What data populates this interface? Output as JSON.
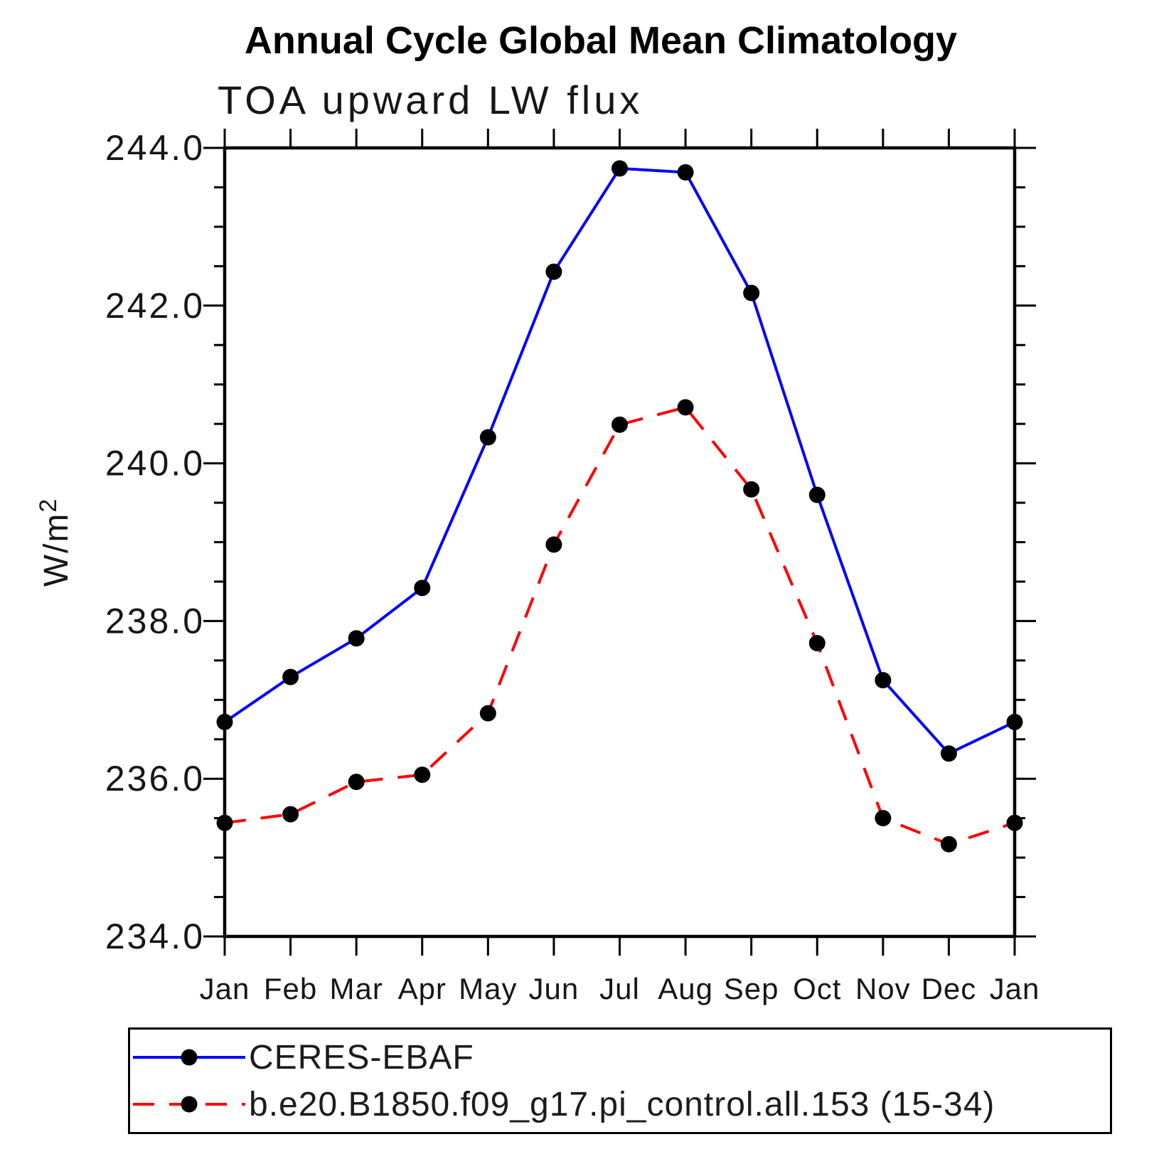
{
  "title": "Annual Cycle Global Mean Climatology",
  "subtitle": "TOA upward LW flux",
  "colors": {
    "axis": "#000000",
    "marker": "#000000",
    "ceres_line": "#0000ff",
    "model_line": "#ff0000"
  },
  "y_axis": {
    "label_main": "W/m",
    "label_sup": "2",
    "min": 234.0,
    "max": 244.0,
    "major_step": 2.0,
    "minor_step": 0.5,
    "tick_labels": [
      "234.0",
      "236.0",
      "238.0",
      "240.0",
      "242.0",
      "244.0"
    ]
  },
  "x_axis": {
    "categories": [
      "Jan",
      "Feb",
      "Mar",
      "Apr",
      "May",
      "Jun",
      "Jul",
      "Aug",
      "Sep",
      "Oct",
      "Nov",
      "Dec",
      "Jan"
    ]
  },
  "legend": {
    "items": [
      {
        "label": "CERES-EBAF",
        "color": "#0000ff",
        "style": "solid"
      },
      {
        "label": "b.e20.B1850.f09_g17.pi_control.all.153 (15-34)",
        "color": "#ff0000",
        "style": "dashed"
      }
    ]
  },
  "chart_data": {
    "type": "line",
    "title": "Annual Cycle Global Mean Climatology",
    "subtitle": "TOA upward LW flux",
    "xlabel": "",
    "ylabel": "W/m2",
    "ylim": [
      234.0,
      244.0
    ],
    "y_major_tick": 2.0,
    "y_minor_tick": 0.5,
    "grid": false,
    "legend_position": "bottom",
    "x": [
      "Jan",
      "Feb",
      "Mar",
      "Apr",
      "May",
      "Jun",
      "Jul",
      "Aug",
      "Sep",
      "Oct",
      "Nov",
      "Dec",
      "Jan"
    ],
    "series": [
      {
        "name": "CERES-EBAF",
        "color": "#0000ff",
        "line_style": "solid",
        "marker": "circle",
        "marker_color": "#000000",
        "values": [
          236.72,
          237.29,
          237.78,
          238.42,
          240.33,
          242.43,
          243.74,
          243.69,
          242.16,
          239.6,
          237.25,
          236.32,
          236.72
        ]
      },
      {
        "name": "b.e20.B1850.f09_g17.pi_control.all.153 (15-34)",
        "color": "#ff0000",
        "line_style": "dashed",
        "marker": "circle",
        "marker_color": "#000000",
        "values": [
          235.44,
          235.55,
          235.96,
          236.05,
          236.83,
          238.97,
          240.49,
          240.71,
          239.67,
          237.72,
          235.5,
          235.17,
          235.44
        ]
      }
    ]
  }
}
